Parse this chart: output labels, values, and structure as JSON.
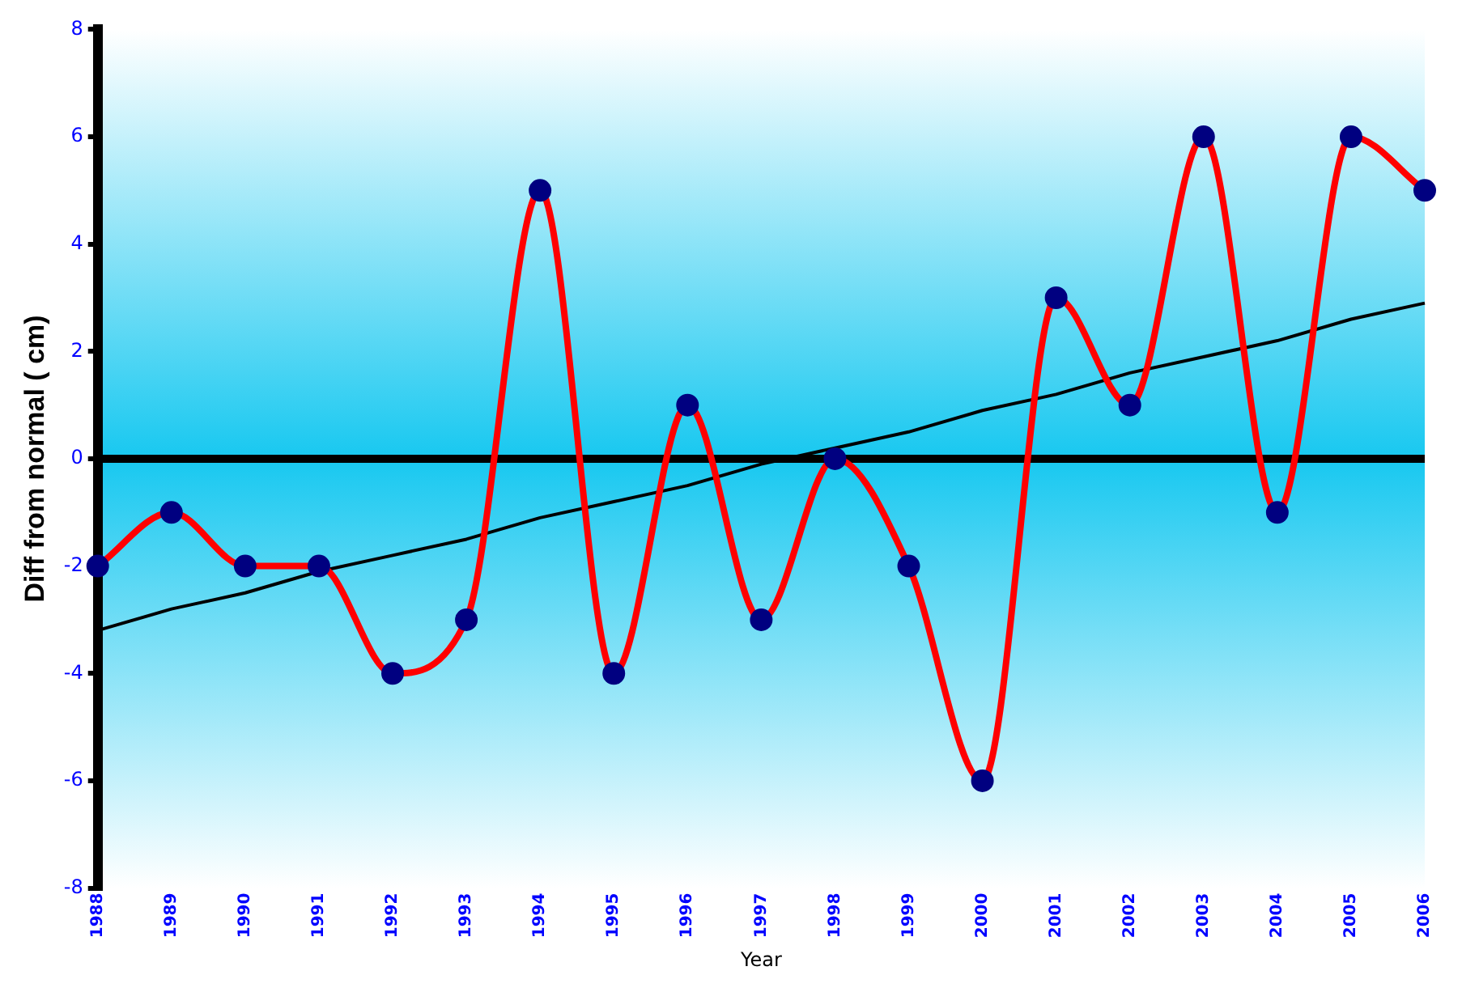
{
  "chart_data": {
    "type": "line",
    "xlabel": "Year",
    "ylabel": "Diff from normal ( cm)",
    "categories": [
      "1988",
      "1989",
      "1990",
      "1991",
      "1992",
      "1993",
      "1994",
      "1995",
      "1996",
      "1997",
      "1998",
      "1999",
      "2000",
      "2001",
      "2002",
      "2003",
      "2004",
      "2005",
      "2006"
    ],
    "series": [
      {
        "color": "#ff0000",
        "marker": "circle",
        "values": [
          -2,
          -1,
          -2,
          -2,
          -4,
          -3,
          5,
          -4,
          1,
          -3,
          0,
          -2,
          -6,
          3,
          1,
          6,
          -1,
          6,
          5
        ]
      },
      {
        "type": "line",
        "color": "#000000",
        "marker": "none",
        "values": [
          -3.2,
          -2.8,
          -2.5,
          -2.1,
          -1.8,
          -1.5,
          -1.1,
          -0.8,
          -0.5,
          -0.1,
          0.2,
          0.5,
          0.9,
          1.2,
          1.6,
          1.9,
          2.2,
          2.6,
          2.9
        ]
      }
    ],
    "ylim": [
      -8,
      8
    ],
    "yticks": [
      -8,
      -6,
      -4,
      -2,
      0,
      2,
      4,
      6,
      8
    ],
    "ref_lines": [
      {
        "axis": "y",
        "value": 0,
        "color": "#000000"
      }
    ],
    "grid": false,
    "legend": false
  }
}
